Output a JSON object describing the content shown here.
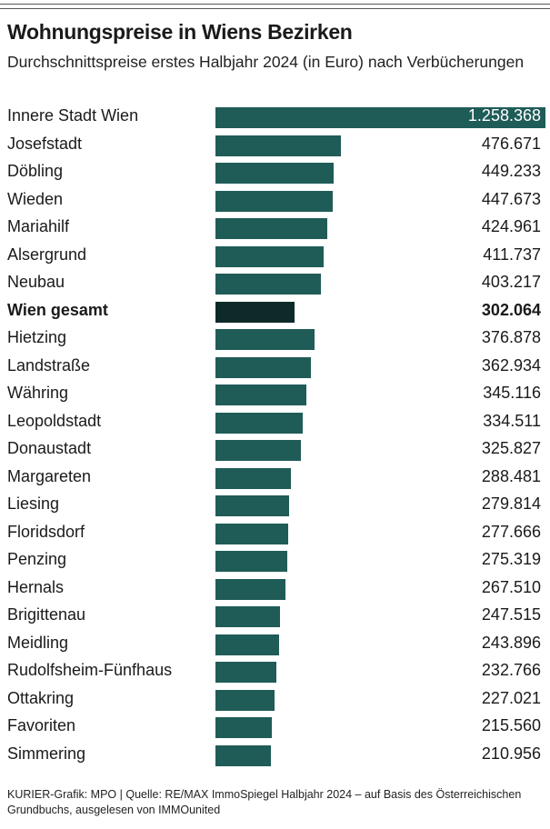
{
  "title": "Wohnungspreise in Wiens Bezirken",
  "subtitle": "Durchschnittspreise erstes Halbjahr 2024 (in Euro) nach Verbücherungen",
  "footer": "KURIER-Grafik: MPO | Quelle: RE/MAX ImmoSpiegel Halbjahr 2024 – auf Basis des Österreichischen Grundbuchs, ausgelesen von IMMOunited",
  "colors": {
    "bar": "#1f5c58",
    "highlight_bar": "#0d2a28"
  },
  "chart_data": {
    "type": "bar",
    "orientation": "horizontal",
    "title": "Wohnungspreise in Wiens Bezirken",
    "subtitle": "Durchschnittspreise erstes Halbjahr 2024 (in Euro) nach Verbücherungen",
    "xlabel": "",
    "ylabel": "",
    "xlim": [
      0,
      1258368
    ],
    "grid": false,
    "categories": [
      "Innere Stadt Wien",
      "Josefstadt",
      "Döbling",
      "Wieden",
      "Mariahilf",
      "Alsergrund",
      "Neubau",
      "Wien gesamt",
      "Hietzing",
      "Landstraße",
      "Währing",
      "Leopoldstadt",
      "Donaustadt",
      "Margareten",
      "Liesing",
      "Floridsdorf",
      "Penzing",
      "Hernals",
      "Brigittenau",
      "Meidling",
      "Rudolfsheim-Fünfhaus",
      "Ottakring",
      "Favoriten",
      "Simmering"
    ],
    "values": [
      1258368,
      476671,
      449233,
      447673,
      424961,
      411737,
      403217,
      302064,
      376878,
      362934,
      345116,
      334511,
      325827,
      288481,
      279814,
      277666,
      275319,
      267510,
      247515,
      243896,
      232766,
      227021,
      215560,
      210956
    ],
    "labels": [
      "1.258.368",
      "476.671",
      "449.233",
      "447.673",
      "424.961",
      "411.737",
      "403.217",
      "302.064",
      "376.878",
      "362.934",
      "345.116",
      "334.511",
      "325.827",
      "288.481",
      "279.814",
      "277.666",
      "275.319",
      "267.510",
      "247.515",
      "243.896",
      "232.766",
      "227.021",
      "215.560",
      "210.956"
    ],
    "highlight": "Wien gesamt"
  }
}
